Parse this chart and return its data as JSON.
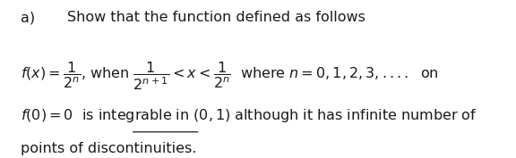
{
  "background_color": "#ffffff",
  "figsize": [
    5.76,
    1.77
  ],
  "dpi": 100,
  "line1_label": "a)",
  "line1_text": "Show that the function defined as follows",
  "line2_math": "$f(x)=\\dfrac{1}{2^{n}}$, when $\\dfrac{1}{2^{n+1}}<x<\\dfrac{1}{2^{n}}$  where $n=0,1,2,3,....$  on",
  "line3_math": "$f(0)=0$  is integrable in $(0,1)$ although it has infinite number of",
  "line4_text": "points of discontinuities.",
  "fontsize_header": 11.5,
  "fontsize_math": 11.5,
  "fontsize_body": 11.5,
  "underline_word": "integrable",
  "text_color": "#1a1a1a"
}
